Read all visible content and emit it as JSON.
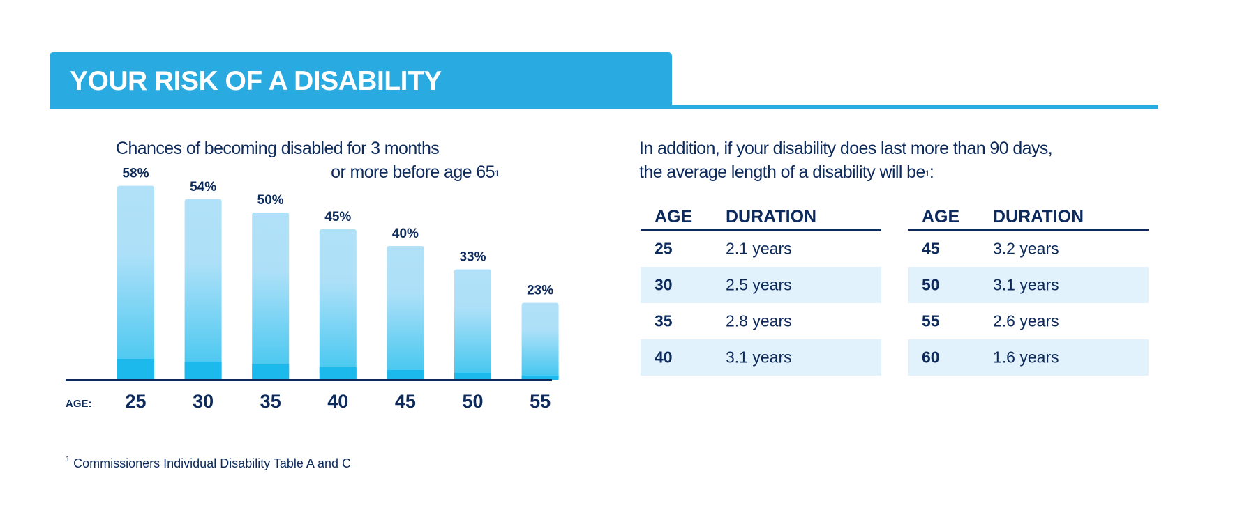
{
  "header": {
    "title": "YOUR RISK OF A DISABILITY"
  },
  "chart_data": {
    "type": "bar",
    "title_line1": "Chances of becoming disabled for 3 months",
    "title_line2": "or more before age 65",
    "title_footnote_mark": "1",
    "xlabel": "AGE:",
    "categories": [
      "25",
      "30",
      "35",
      "40",
      "45",
      "50",
      "55"
    ],
    "values": [
      58,
      54,
      50,
      45,
      40,
      33,
      23
    ],
    "value_labels": [
      "58%",
      "54%",
      "50%",
      "45%",
      "40%",
      "33%",
      "23%"
    ],
    "unit": "%",
    "grid": false,
    "colors": {
      "bar_top": "#b0e1f8",
      "bar_bottom": "#3ec5ef",
      "bar_base": "#1bb9ec",
      "axis": "#0d2a5c"
    }
  },
  "intro": {
    "line1": "In addition, if your disability does last more than 90 days,",
    "line2": "the average length of a disability will be",
    "footnote_mark": "1",
    "suffix": ":"
  },
  "tables": [
    {
      "headers": {
        "age": "AGE",
        "duration": "DURATION"
      },
      "rows": [
        {
          "age": "25",
          "duration": "2.1 years"
        },
        {
          "age": "30",
          "duration": "2.5 years"
        },
        {
          "age": "35",
          "duration": "2.8 years"
        },
        {
          "age": "40",
          "duration": "3.1 years"
        }
      ]
    },
    {
      "headers": {
        "age": "AGE",
        "duration": "DURATION"
      },
      "rows": [
        {
          "age": "45",
          "duration": "3.2 years"
        },
        {
          "age": "50",
          "duration": "3.1 years"
        },
        {
          "age": "55",
          "duration": "2.6 years"
        },
        {
          "age": "60",
          "duration": "1.6 years"
        }
      ]
    }
  ],
  "footnote": {
    "mark": "1",
    "text": " Commissioners Individual Disability Table A and C"
  },
  "colors": {
    "brand": "#29abe2",
    "navy": "#0d2a5c",
    "row_alt": "#e1f2fc"
  }
}
